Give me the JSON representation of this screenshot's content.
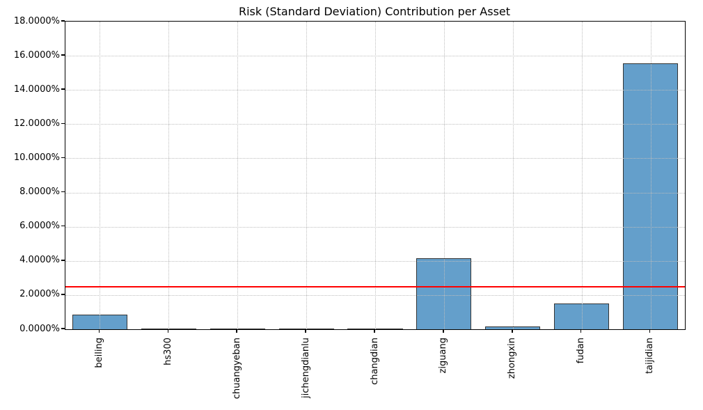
{
  "chart_data": {
    "type": "bar",
    "title": "Risk (Standard Deviation) Contribution per Asset",
    "categories": [
      "beiling",
      "hs300",
      "chuangyeban",
      "jichengdianlu",
      "changdian",
      "ziguang",
      "zhongxin",
      "fudan",
      "taijidian"
    ],
    "values_pct": [
      0.87,
      0.02,
      0.02,
      0.02,
      0.03,
      4.17,
      0.17,
      1.52,
      15.55
    ],
    "xlabel": "",
    "ylabel": "",
    "ylim": [
      0,
      18
    ],
    "ytick_step": 2,
    "ytick_labels": [
      "0.0000%",
      "2.0000%",
      "4.0000%",
      "6.0000%",
      "8.0000%",
      "10.0000%",
      "12.0000%",
      "14.0000%",
      "16.0000%",
      "18.0000%"
    ],
    "reference_line_pct": 2.49,
    "reference_line_color": "#ff0000",
    "bar_fill_color": "#649fcb",
    "bar_edge_color": "#333333",
    "grid": true,
    "grid_style": "dotted",
    "legend": "none",
    "bar_width_fraction": 0.8
  }
}
